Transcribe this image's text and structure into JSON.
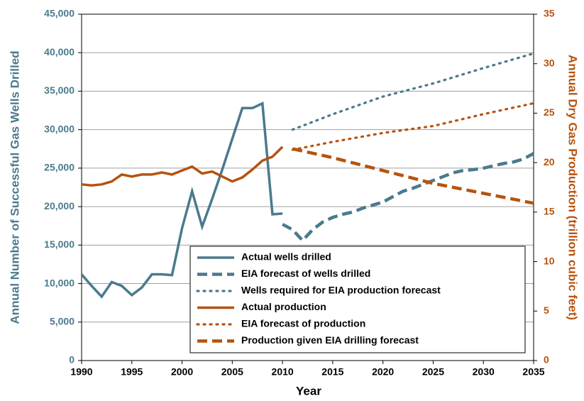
{
  "chart_data": {
    "type": "line",
    "xlabel": "Year",
    "ylabel": "Annual Number of Successful Gas Wells Drilled",
    "y2label": "Annual Dry Gas Production (trillion cubic feet)",
    "xlim": [
      1990,
      2035
    ],
    "xticks": [
      1990,
      1995,
      2000,
      2005,
      2010,
      2015,
      2020,
      2025,
      2030,
      2035
    ],
    "ylim": [
      0,
      45000
    ],
    "yticks": [
      0,
      {
        "value": 5000,
        "label": "5,000"
      },
      {
        "value": 10000,
        "label": "10,000"
      },
      {
        "value": 15000,
        "label": "15,000"
      },
      {
        "value": 20000,
        "label": "20,000"
      },
      {
        "value": 25000,
        "label": "25,000"
      },
      {
        "value": 30000,
        "label": "30,000"
      },
      {
        "value": 35000,
        "label": "35,000"
      },
      {
        "value": 40000,
        "label": "40,000"
      },
      {
        "value": 45000,
        "label": "45,000"
      }
    ],
    "y2lim": [
      0,
      35
    ],
    "y2ticks": [
      0,
      5,
      10,
      15,
      20,
      25,
      30,
      35
    ],
    "grid": true,
    "series": [
      {
        "name": "Actual wells drilled",
        "color": "#4a7a8c",
        "dash": "solid",
        "axis": "y",
        "x": [
          1990,
          1991,
          1992,
          1993,
          1994,
          1995,
          1996,
          1997,
          1998,
          1999,
          2000,
          2001,
          2002,
          2003,
          2004,
          2005,
          2006,
          2007,
          2008,
          2009,
          2010
        ],
        "values": [
          11200,
          9700,
          8300,
          10200,
          9700,
          8500,
          9500,
          11200,
          11200,
          11100,
          17200,
          22000,
          17400,
          21000,
          24800,
          28800,
          32800,
          32800,
          33400,
          19000,
          19100
        ]
      },
      {
        "name": "EIA forecast of wells drilled",
        "color": "#4a7a8c",
        "dash": "dashed",
        "axis": "y",
        "x": [
          2010,
          2011,
          2012,
          2013,
          2014,
          2015,
          2016,
          2017,
          2018,
          2019,
          2020,
          2021,
          2022,
          2023,
          2024,
          2025,
          2026,
          2027,
          2028,
          2029,
          2030,
          2031,
          2032,
          2033,
          2034,
          2035
        ],
        "values": [
          17700,
          17000,
          15600,
          17000,
          18000,
          18600,
          19000,
          19300,
          19800,
          20200,
          20600,
          21300,
          22000,
          22400,
          22900,
          23400,
          23900,
          24400,
          24700,
          24800,
          25000,
          25300,
          25600,
          25800,
          26200,
          26900
        ]
      },
      {
        "name": "Wells required for EIA production forecast",
        "color": "#4a7a8c",
        "dash": "dotted",
        "axis": "y",
        "x": [
          2011,
          2015,
          2020,
          2025,
          2030,
          2035
        ],
        "values": [
          30000,
          32000,
          34300,
          36000,
          38000,
          39900
        ]
      },
      {
        "name": "Actual production",
        "color": "#b5530f",
        "dash": "solid",
        "axis": "y2",
        "x": [
          1990,
          1991,
          1992,
          1993,
          1994,
          1995,
          1996,
          1997,
          1998,
          1999,
          2000,
          2001,
          2002,
          2003,
          2004,
          2005,
          2006,
          2007,
          2008,
          2009,
          2010
        ],
        "values": [
          17.8,
          17.7,
          17.8,
          18.1,
          18.8,
          18.6,
          18.8,
          18.8,
          19.0,
          18.8,
          19.2,
          19.6,
          18.9,
          19.1,
          18.6,
          18.1,
          18.5,
          19.3,
          20.2,
          20.6,
          21.6
        ]
      },
      {
        "name": "EIA forecast of production",
        "color": "#b5530f",
        "dash": "dotted",
        "axis": "y2",
        "x": [
          2011,
          2015,
          2020,
          2025,
          2030,
          2035
        ],
        "values": [
          21.3,
          22.1,
          23.0,
          23.7,
          24.9,
          26.0
        ]
      },
      {
        "name": "Production given EIA drilling forecast",
        "color": "#b5530f",
        "dash": "dashed",
        "axis": "y2",
        "x": [
          2011,
          2015,
          2020,
          2025,
          2030,
          2035
        ],
        "values": [
          21.4,
          20.5,
          19.2,
          17.9,
          16.9,
          15.9
        ]
      }
    ]
  }
}
